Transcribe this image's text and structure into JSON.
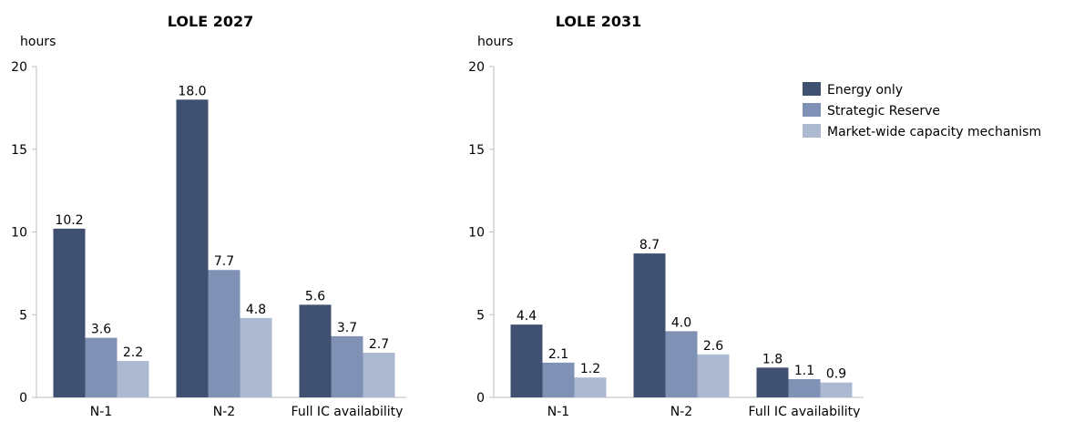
{
  "chart_data": [
    {
      "type": "bar",
      "title": "LOLE 2027",
      "ylabel": "hours",
      "xlabel": "",
      "ylim": [
        0,
        20
      ],
      "yticks": [
        "0",
        "5",
        "10",
        "15",
        "20"
      ],
      "grid": false,
      "categories": [
        "N-1",
        "N-2",
        "Full IC availability"
      ],
      "series": [
        {
          "name": "Energy only",
          "values": [
            10.2,
            18.0,
            5.6
          ],
          "labels": [
            "10.2",
            "18.0",
            "5.6"
          ],
          "color": "#3f5070"
        },
        {
          "name": "Strategic Reserve",
          "values": [
            3.6,
            7.7,
            3.7
          ],
          "labels": [
            "3.6",
            "7.7",
            "3.7"
          ],
          "color": "#7f91b5"
        },
        {
          "name": "Market-wide capacity mechanism",
          "values": [
            2.2,
            4.8,
            2.7
          ],
          "labels": [
            "2.2",
            "4.8",
            "2.7"
          ],
          "color": "#adb8d1"
        }
      ]
    },
    {
      "type": "bar",
      "title": "LOLE 2031",
      "ylabel": "hours",
      "xlabel": "",
      "ylim": [
        0,
        20
      ],
      "yticks": [
        "0",
        "5",
        "10",
        "15",
        "20"
      ],
      "grid": false,
      "legend_position": "top-right",
      "categories": [
        "N-1",
        "N-2",
        "Full IC availability"
      ],
      "series": [
        {
          "name": "Energy only",
          "values": [
            4.4,
            8.7,
            1.8
          ],
          "labels": [
            "4.4",
            "8.7",
            "1.8"
          ],
          "color": "#3f5070"
        },
        {
          "name": "Strategic Reserve",
          "values": [
            2.1,
            4.0,
            1.1
          ],
          "labels": [
            "2.1",
            "4.0",
            "1.1"
          ],
          "color": "#7f91b5"
        },
        {
          "name": "Market-wide capacity mechanism",
          "values": [
            1.2,
            2.6,
            0.9
          ],
          "labels": [
            "1.2",
            "2.6",
            "0.9"
          ],
          "color": "#adb8d1"
        }
      ]
    }
  ]
}
